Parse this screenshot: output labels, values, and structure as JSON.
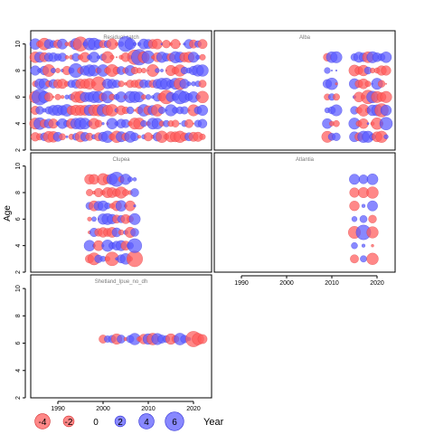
{
  "chart_data": {
    "type": "scatter",
    "ylabel": "Age",
    "xlabel": "Year",
    "bubble_legend": {
      "values": [
        -4,
        -2,
        0,
        2,
        4,
        6
      ],
      "labels": [
        "-4",
        "-2",
        "0",
        "2",
        "4",
        "6"
      ]
    },
    "colors": {
      "negative": "#ff5a5a",
      "positive": "#5a5aff",
      "stroke_negative": "#d42a2a",
      "stroke_positive": "#2a2ad4"
    },
    "xlim": [
      1984,
      2024
    ],
    "x_ticks": [
      1990,
      2000,
      2010,
      2020
    ],
    "x_tick_labels": [
      "1990",
      "2000",
      "2010",
      "2020"
    ],
    "panels": [
      {
        "id": "residual-catch",
        "title": "Residual catch",
        "ylim": [
          2,
          11
        ],
        "y_ticks": [
          2,
          4,
          6,
          8,
          10
        ],
        "y_tick_labels": [
          "2",
          "4",
          "6",
          "8",
          "10"
        ],
        "show_x_axis": false,
        "show_y_axis": true,
        "years": [
          1985,
          2022
        ],
        "ages": [
          3,
          10
        ],
        "seed": 11
      },
      {
        "id": "alba",
        "title": "Alba",
        "ylim": [
          2,
          11
        ],
        "y_ticks": [],
        "y_tick_labels": [],
        "show_x_axis": false,
        "show_y_axis": false,
        "gap_years": [
          [
            2009,
            2011
          ],
          [
            2015,
            2022
          ]
        ],
        "ages": [
          3,
          9
        ],
        "seed": 29
      },
      {
        "id": "clupea",
        "title": "Clupea",
        "ylim": [
          2,
          11
        ],
        "y_ticks": [
          2,
          4,
          6,
          8,
          10
        ],
        "y_tick_labels": [
          "2",
          "4",
          "6",
          "8",
          "10"
        ],
        "show_x_axis": false,
        "show_y_axis": true,
        "years": [
          1997,
          2007
        ],
        "ages": [
          3,
          9
        ],
        "seed": 47
      },
      {
        "id": "atlantia",
        "title": "Atlantia",
        "ylim": [
          2,
          11
        ],
        "y_ticks": [],
        "y_tick_labels": [],
        "show_x_axis": true,
        "show_y_axis": false,
        "years": [
          2015,
          2019
        ],
        "year_step": 2,
        "ages": [
          3,
          9
        ],
        "seed": 61
      },
      {
        "id": "shetland",
        "title": "Shetland_lpue_no_dh",
        "ylim": [
          2,
          11
        ],
        "y_ticks": [
          2,
          4,
          6,
          8,
          10
        ],
        "y_tick_labels": [
          "2",
          "4",
          "6",
          "8",
          "10"
        ],
        "show_x_axis": true,
        "show_y_axis": true,
        "years": [
          2000,
          2022
        ],
        "ages": [
          6.3,
          6.3
        ],
        "seed": 83
      }
    ]
  }
}
